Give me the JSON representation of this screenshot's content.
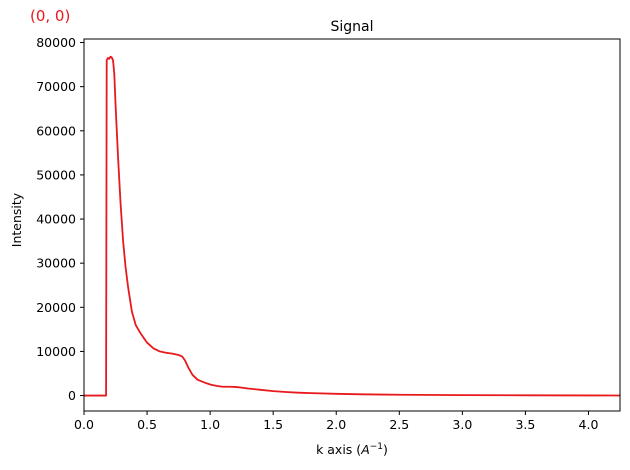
{
  "corner_label": "(0, 0)",
  "chart_data": {
    "type": "line",
    "title": "Signal",
    "xlabel": "k axis",
    "xlabel_unit_base": "A",
    "xlabel_unit_exp": "−1",
    "ylabel": "Intensity",
    "xlim": [
      0.0,
      4.25
    ],
    "ylim": [
      -3500,
      80800
    ],
    "xticks": [
      0.0,
      0.5,
      1.0,
      1.5,
      2.0,
      2.5,
      3.0,
      3.5,
      4.0
    ],
    "xtick_labels": [
      "0.0",
      "0.5",
      "1.0",
      "1.5",
      "2.0",
      "2.5",
      "3.0",
      "3.5",
      "4.0"
    ],
    "yticks": [
      0,
      10000,
      20000,
      30000,
      40000,
      50000,
      60000,
      70000,
      80000
    ],
    "ytick_labels": [
      "0",
      "10000",
      "20000",
      "30000",
      "40000",
      "50000",
      "60000",
      "70000",
      "80000"
    ],
    "grid": false,
    "series": [
      {
        "color": "#e8191c",
        "x": [
          0.0,
          0.17,
          0.175,
          0.18,
          0.19,
          0.2,
          0.21,
          0.22,
          0.23,
          0.24,
          0.25,
          0.27,
          0.29,
          0.31,
          0.33,
          0.35,
          0.38,
          0.41,
          0.44,
          0.47,
          0.5,
          0.55,
          0.6,
          0.65,
          0.7,
          0.75,
          0.78,
          0.8,
          0.83,
          0.86,
          0.9,
          0.95,
          1.0,
          1.05,
          1.1,
          1.15,
          1.2,
          1.25,
          1.3,
          1.4,
          1.5,
          1.6,
          1.7,
          1.8,
          2.0,
          2.2,
          2.5,
          3.0,
          3.5,
          4.0,
          4.25
        ],
        "y": [
          0,
          0,
          0,
          76000,
          76500,
          76300,
          76800,
          76600,
          76000,
          73000,
          66000,
          54000,
          43500,
          35000,
          29000,
          24500,
          19000,
          16000,
          14500,
          13200,
          12000,
          10700,
          10000,
          9700,
          9500,
          9200,
          8800,
          8000,
          6200,
          4700,
          3600,
          3000,
          2500,
          2200,
          2000,
          2000,
          1950,
          1800,
          1600,
          1300,
          1000,
          800,
          650,
          550,
          400,
          280,
          180,
          100,
          60,
          30,
          20
        ]
      }
    ]
  }
}
